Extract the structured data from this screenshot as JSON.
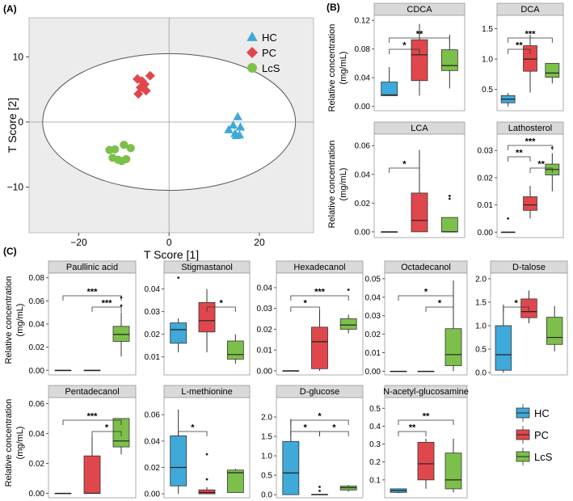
{
  "panel_labels": {
    "a": "(A)",
    "b": "(B)",
    "c": "(C)"
  },
  "colors": {
    "HC": "#3fa9d9",
    "PC": "#e0474c",
    "LcS": "#7cc04b"
  },
  "yaxis_label_line1": "Relative concentration",
  "yaxis_label_line2": "(mg/mL)",
  "chart_data": [
    {
      "type": "scatter",
      "id": "A",
      "title": "",
      "xlabel": "T Score [1]",
      "ylabel": "T Score [2]",
      "xlim": [
        -31,
        32
      ],
      "ylim": [
        -17,
        16
      ],
      "xticks": [
        -20,
        0,
        20
      ],
      "yticks": [
        -10,
        0,
        10
      ],
      "ellipse": {
        "cx": 0,
        "cy": 0,
        "rx": 28,
        "ry": 10.5
      },
      "legend": [
        {
          "name": "HC",
          "marker": "triangle"
        },
        {
          "name": "PC",
          "marker": "diamond"
        },
        {
          "name": "LcS",
          "marker": "circle"
        }
      ],
      "series": [
        {
          "name": "HC",
          "marker": "triangle",
          "points": [
            [
              15.2,
              0.8
            ],
            [
              14.2,
              -0.5
            ],
            [
              15.8,
              -0.8
            ],
            [
              13.2,
              -1.2
            ],
            [
              14.6,
              -1.8
            ],
            [
              15.6,
              -2.0
            ],
            [
              14.9,
              -2.1
            ]
          ]
        },
        {
          "name": "PC",
          "marker": "diamond",
          "points": [
            [
              -4.2,
              7.1
            ],
            [
              -6.0,
              6.3
            ],
            [
              -7.0,
              6.6
            ],
            [
              -5.4,
              5.8
            ],
            [
              -6.3,
              5.3
            ],
            [
              -5.1,
              4.8
            ],
            [
              -6.8,
              4.3
            ]
          ]
        },
        {
          "name": "LcS",
          "marker": "circle",
          "points": [
            [
              -10.0,
              -3.5
            ],
            [
              -8.5,
              -4.0
            ],
            [
              -12.0,
              -4.2
            ],
            [
              -13.2,
              -4.3
            ],
            [
              -12.5,
              -5.5
            ],
            [
              -9.5,
              -5.7
            ],
            [
              -11.3,
              -5.8
            ],
            [
              -10.5,
              -6.0
            ]
          ]
        }
      ]
    },
    {
      "type": "box",
      "id": "CDCA",
      "title": "CDCA",
      "ylim": [
        -0.006,
        0.127
      ],
      "yticks": [
        0,
        0.04,
        0.08,
        0.12
      ],
      "ytick_labels": [
        "0.00",
        "0.04",
        "0.08",
        "0.12"
      ],
      "groups": [
        {
          "name": "HC",
          "whislo": 0.015,
          "q1": 0.015,
          "med": 0.016,
          "q3": 0.034,
          "whishi": 0.055,
          "outliers": []
        },
        {
          "name": "PC",
          "whislo": 0.015,
          "q1": 0.036,
          "med": 0.072,
          "q3": 0.093,
          "whishi": 0.115,
          "outliers": []
        },
        {
          "name": "LcS",
          "whislo": 0.025,
          "q1": 0.05,
          "med": 0.057,
          "q3": 0.079,
          "whishi": 0.1,
          "outliers": []
        }
      ],
      "sig": [
        {
          "g1": 0,
          "g2": 1,
          "label": "*",
          "level": 0
        },
        {
          "g1": 0,
          "g2": 2,
          "label": "**",
          "level": 1
        }
      ]
    },
    {
      "type": "box",
      "id": "DCA",
      "title": "DCA",
      "ylim": [
        0.15,
        1.72
      ],
      "yticks": [
        0.5,
        1.0,
        1.5
      ],
      "ytick_labels": [
        "0.5",
        "1.0",
        "1.5"
      ],
      "groups": [
        {
          "name": "HC",
          "whislo": 0.22,
          "q1": 0.28,
          "med": 0.34,
          "q3": 0.4,
          "whishi": 0.44,
          "outliers": []
        },
        {
          "name": "PC",
          "whislo": 0.45,
          "q1": 0.8,
          "med": 1.0,
          "q3": 1.22,
          "whishi": 1.4,
          "outliers": []
        },
        {
          "name": "LcS",
          "whislo": 0.6,
          "q1": 0.7,
          "med": 0.77,
          "q3": 0.93,
          "whishi": 0.93,
          "outliers": []
        }
      ],
      "sig": [
        {
          "g1": 0,
          "g2": 1,
          "label": "**",
          "level": 0
        },
        {
          "g1": 0,
          "g2": 2,
          "label": "***",
          "level": 1
        }
      ]
    },
    {
      "type": "box",
      "id": "LCA",
      "title": "LCA",
      "ylim": [
        -0.004,
        0.068
      ],
      "yticks": [
        0,
        0.02,
        0.04,
        0.06
      ],
      "ytick_labels": [
        "0.00",
        "0.02",
        "0.04",
        "0.06"
      ],
      "groups": [
        {
          "name": "HC",
          "whislo": 0.0,
          "q1": 0.0,
          "med": 0.0,
          "q3": 0.0,
          "whishi": 0.0,
          "outliers": []
        },
        {
          "name": "PC",
          "whislo": 0.0,
          "q1": 0.0,
          "med": 0.008,
          "q3": 0.027,
          "whishi": 0.057,
          "outliers": []
        },
        {
          "name": "LcS",
          "whislo": 0.0,
          "q1": 0.0,
          "med": 0.0,
          "q3": 0.01,
          "whishi": 0.01,
          "outliers": [
            0.023,
            0.025
          ]
        }
      ],
      "sig": [
        {
          "g1": 0,
          "g2": 1,
          "label": "*",
          "level": 0
        }
      ]
    },
    {
      "type": "box",
      "id": "Lathosterol",
      "title": "Lathosterol",
      "ylim": [
        -0.002,
        0.036
      ],
      "yticks": [
        0,
        0.01,
        0.02,
        0.03
      ],
      "ytick_labels": [
        "0.00",
        "0.01",
        "0.02",
        "0.03"
      ],
      "groups": [
        {
          "name": "HC",
          "whislo": 0.0,
          "q1": 0.0,
          "med": 0.0,
          "q3": 0.0,
          "whishi": 0.0,
          "outliers": [
            0.005
          ]
        },
        {
          "name": "PC",
          "whislo": 0.005,
          "q1": 0.008,
          "med": 0.01,
          "q3": 0.013,
          "whishi": 0.017,
          "outliers": []
        },
        {
          "name": "LcS",
          "whislo": 0.015,
          "q1": 0.021,
          "med": 0.023,
          "q3": 0.025,
          "whishi": 0.029,
          "outliers": [
            0.031
          ]
        }
      ],
      "sig": [
        {
          "g1": 1,
          "g2": 2,
          "label": "**",
          "level": 0
        },
        {
          "g1": 0,
          "g2": 1,
          "label": "**",
          "level": 1
        },
        {
          "g1": 0,
          "g2": 2,
          "label": "***",
          "level": 2
        }
      ]
    },
    {
      "type": "box",
      "id": "Paullinic",
      "title": "Paullinic acid",
      "ylim": [
        -0.004,
        0.084
      ],
      "yticks": [
        0,
        0.02,
        0.04,
        0.06,
        0.08
      ],
      "ytick_labels": [
        "0.00",
        "0.02",
        "0.04",
        "0.06",
        "0.08"
      ],
      "groups": [
        {
          "name": "HC",
          "whislo": 0.0,
          "q1": 0.0,
          "med": 0.0,
          "q3": 0.0,
          "whishi": 0.0,
          "outliers": []
        },
        {
          "name": "PC",
          "whislo": 0.0,
          "q1": 0.0,
          "med": 0.0,
          "q3": 0.0,
          "whishi": 0.0,
          "outliers": []
        },
        {
          "name": "LcS",
          "whislo": 0.012,
          "q1": 0.025,
          "med": 0.031,
          "q3": 0.038,
          "whishi": 0.05,
          "outliers": [
            0.056,
            0.063
          ]
        }
      ],
      "sig": [
        {
          "g1": 1,
          "g2": 2,
          "label": "***",
          "level": 0
        },
        {
          "g1": 0,
          "g2": 2,
          "label": "***",
          "level": 1
        }
      ]
    },
    {
      "type": "box",
      "id": "Stigmastanol",
      "title": "Stigmastanol",
      "ylim": [
        0.002,
        0.047
      ],
      "yticks": [
        0.01,
        0.02,
        0.03,
        0.04
      ],
      "ytick_labels": [
        "0.01",
        "0.02",
        "0.03",
        "0.04"
      ],
      "groups": [
        {
          "name": "HC",
          "whislo": 0.012,
          "q1": 0.016,
          "med": 0.022,
          "q3": 0.025,
          "whishi": 0.027,
          "outliers": [
            0.045
          ]
        },
        {
          "name": "PC",
          "whislo": 0.012,
          "q1": 0.021,
          "med": 0.026,
          "q3": 0.034,
          "whishi": 0.04,
          "outliers": []
        },
        {
          "name": "LcS",
          "whislo": 0.007,
          "q1": 0.009,
          "med": 0.011,
          "q3": 0.017,
          "whishi": 0.02,
          "outliers": []
        }
      ],
      "sig": [
        {
          "g1": 1,
          "g2": 2,
          "label": "*",
          "level": 0
        }
      ]
    },
    {
      "type": "box",
      "id": "Hexadecanol",
      "title": "Hexadecanol",
      "ylim": [
        -0.002,
        0.047
      ],
      "yticks": [
        0,
        0.01,
        0.02,
        0.03,
        0.04
      ],
      "ytick_labels": [
        "0.00",
        "0.01",
        "0.02",
        "0.03",
        "0.04"
      ],
      "groups": [
        {
          "name": "HC",
          "whislo": 0.0,
          "q1": 0.0,
          "med": 0.0,
          "q3": 0.0,
          "whishi": 0.0,
          "outliers": []
        },
        {
          "name": "PC",
          "whislo": 0.0,
          "q1": 0.001,
          "med": 0.014,
          "q3": 0.021,
          "whishi": 0.029,
          "outliers": []
        },
        {
          "name": "LcS",
          "whislo": 0.018,
          "q1": 0.02,
          "med": 0.022,
          "q3": 0.025,
          "whishi": 0.027,
          "outliers": [
            0.039
          ]
        }
      ],
      "sig": [
        {
          "g1": 0,
          "g2": 1,
          "label": "*",
          "level": 0
        },
        {
          "g1": 0,
          "g2": 2,
          "label": "***",
          "level": 1
        }
      ]
    },
    {
      "type": "box",
      "id": "Octadecanol",
      "title": "Octadecanol",
      "ylim": [
        -0.002,
        0.053
      ],
      "yticks": [
        0,
        0.01,
        0.02,
        0.03,
        0.04,
        0.05
      ],
      "ytick_labels": [
        "0.00",
        "0.01",
        "0.02",
        "0.03",
        "0.04",
        "0.05"
      ],
      "groups": [
        {
          "name": "HC",
          "whislo": 0.0,
          "q1": 0.0,
          "med": 0.0,
          "q3": 0.0,
          "whishi": 0.0,
          "outliers": []
        },
        {
          "name": "PC",
          "whislo": 0.0,
          "q1": 0.0,
          "med": 0.0,
          "q3": 0.0,
          "whishi": 0.0,
          "outliers": []
        },
        {
          "name": "LcS",
          "whislo": 0.0,
          "q1": 0.003,
          "med": 0.009,
          "q3": 0.023,
          "whishi": 0.049,
          "outliers": []
        }
      ],
      "sig": [
        {
          "g1": 1,
          "g2": 2,
          "label": "*",
          "level": 0
        },
        {
          "g1": 0,
          "g2": 2,
          "label": "*",
          "level": 1
        }
      ]
    },
    {
      "type": "box",
      "id": "Dtalose",
      "title": "D-talose",
      "ylim": [
        -0.05,
        2.12
      ],
      "yticks": [
        0,
        0.5,
        1.0,
        1.5,
        2.0
      ],
      "ytick_labels": [
        "0.0",
        "0.5",
        "1.0",
        "1.5",
        "2.0"
      ],
      "groups": [
        {
          "name": "HC",
          "whislo": 0.0,
          "q1": 0.05,
          "med": 0.38,
          "q3": 1.0,
          "whishi": 1.45,
          "outliers": []
        },
        {
          "name": "PC",
          "whislo": 1.05,
          "q1": 1.17,
          "med": 1.3,
          "q3": 1.57,
          "whishi": 1.75,
          "outliers": []
        },
        {
          "name": "LcS",
          "whislo": 0.45,
          "q1": 0.6,
          "med": 0.75,
          "q3": 1.18,
          "whishi": 1.42,
          "outliers": []
        }
      ],
      "sig": [
        {
          "g1": 0,
          "g2": 1,
          "label": "*",
          "level": 0
        }
      ]
    },
    {
      "type": "box",
      "id": "Pentadecanol",
      "title": "Pentadecanol",
      "ylim": [
        -0.003,
        0.064
      ],
      "yticks": [
        0,
        0.02,
        0.04,
        0.06
      ],
      "ytick_labels": [
        "0.00",
        "0.02",
        "0.04",
        "0.06"
      ],
      "groups": [
        {
          "name": "HC",
          "whislo": 0.0,
          "q1": 0.0,
          "med": 0.0,
          "q3": 0.0,
          "whishi": 0.0,
          "outliers": []
        },
        {
          "name": "PC",
          "whislo": 0.0,
          "q1": 0.0,
          "med": 0.0,
          "q3": 0.025,
          "whishi": 0.038,
          "outliers": []
        },
        {
          "name": "LcS",
          "whislo": 0.026,
          "q1": 0.031,
          "med": 0.035,
          "q3": 0.05,
          "whishi": 0.05,
          "outliers": []
        }
      ],
      "sig": [
        {
          "g1": 1,
          "g2": 2,
          "label": "*",
          "level": 0
        },
        {
          "g1": 0,
          "g2": 2,
          "label": "***",
          "level": 1
        }
      ]
    },
    {
      "type": "box",
      "id": "Lmethionine",
      "title": "L-methionine",
      "ylim": [
        -0.003,
        0.073
      ],
      "yticks": [
        0,
        0.02,
        0.04,
        0.06
      ],
      "ytick_labels": [
        "0.00",
        "0.02",
        "0.04",
        "0.06"
      ],
      "groups": [
        {
          "name": "HC",
          "whislo": 0.0,
          "q1": 0.006,
          "med": 0.02,
          "q3": 0.044,
          "whishi": 0.064,
          "outliers": []
        },
        {
          "name": "PC",
          "whislo": 0.0,
          "q1": 0.0,
          "med": 0.001,
          "q3": 0.003,
          "whishi": 0.005,
          "outliers": [
            0.03,
            0.011
          ]
        },
        {
          "name": "LcS",
          "whislo": 0.001,
          "q1": 0.001,
          "med": 0.016,
          "q3": 0.018,
          "whishi": 0.019,
          "outliers": []
        }
      ],
      "sig": [
        {
          "g1": 0,
          "g2": 1,
          "label": "*",
          "level": 0
        }
      ]
    },
    {
      "type": "box",
      "id": "Dglucose",
      "title": "D-glucose",
      "ylim": [
        -0.08,
        2.5
      ],
      "yticks": [
        0,
        0.5,
        1.0,
        1.5,
        2.0
      ],
      "ytick_labels": [
        "0.0",
        "0.5",
        "1.0",
        "1.5",
        "2.0"
      ],
      "groups": [
        {
          "name": "HC",
          "whislo": 0.0,
          "q1": 0.0,
          "med": 0.56,
          "q3": 1.37,
          "whishi": 1.95,
          "outliers": []
        },
        {
          "name": "PC",
          "whislo": 0.0,
          "q1": 0.0,
          "med": 0.0,
          "q3": 0.01,
          "whishi": 0.02,
          "outliers": [
            0.1,
            0.2
          ]
        },
        {
          "name": "LcS",
          "whislo": 0.08,
          "q1": 0.12,
          "med": 0.18,
          "q3": 0.22,
          "whishi": 0.25,
          "outliers": []
        }
      ],
      "sig": [
        {
          "g1": 0,
          "g2": 1,
          "label": "*",
          "level": 0
        },
        {
          "g1": 1,
          "g2": 2,
          "label": "*",
          "level": 0
        },
        {
          "g1": 0,
          "g2": 2,
          "label": "*",
          "level": 1
        }
      ]
    },
    {
      "type": "box",
      "id": "NAG",
      "title": "N-acetyl-glucosamine",
      "ylim": [
        0.0,
        0.56
      ],
      "yticks": [
        0.1,
        0.2,
        0.3,
        0.4,
        0.5
      ],
      "ytick_labels": [
        "0.1",
        "0.2",
        "0.3",
        "0.4",
        "0.5"
      ],
      "groups": [
        {
          "name": "HC",
          "whislo": 0.025,
          "q1": 0.03,
          "med": 0.04,
          "q3": 0.05,
          "whishi": 0.05,
          "outliers": []
        },
        {
          "name": "PC",
          "whislo": 0.05,
          "q1": 0.1,
          "med": 0.19,
          "q3": 0.31,
          "whishi": 0.33,
          "outliers": []
        },
        {
          "name": "LcS",
          "whislo": 0.03,
          "q1": 0.05,
          "med": 0.1,
          "q3": 0.25,
          "whishi": 0.33,
          "outliers": []
        }
      ],
      "sig": [
        {
          "g1": 0,
          "g2": 1,
          "label": "**",
          "level": 0
        },
        {
          "g1": 0,
          "g2": 2,
          "label": "**",
          "level": 1
        }
      ]
    }
  ],
  "legend_c": [
    {
      "name": "HC"
    },
    {
      "name": "PC"
    },
    {
      "name": "LcS"
    }
  ]
}
